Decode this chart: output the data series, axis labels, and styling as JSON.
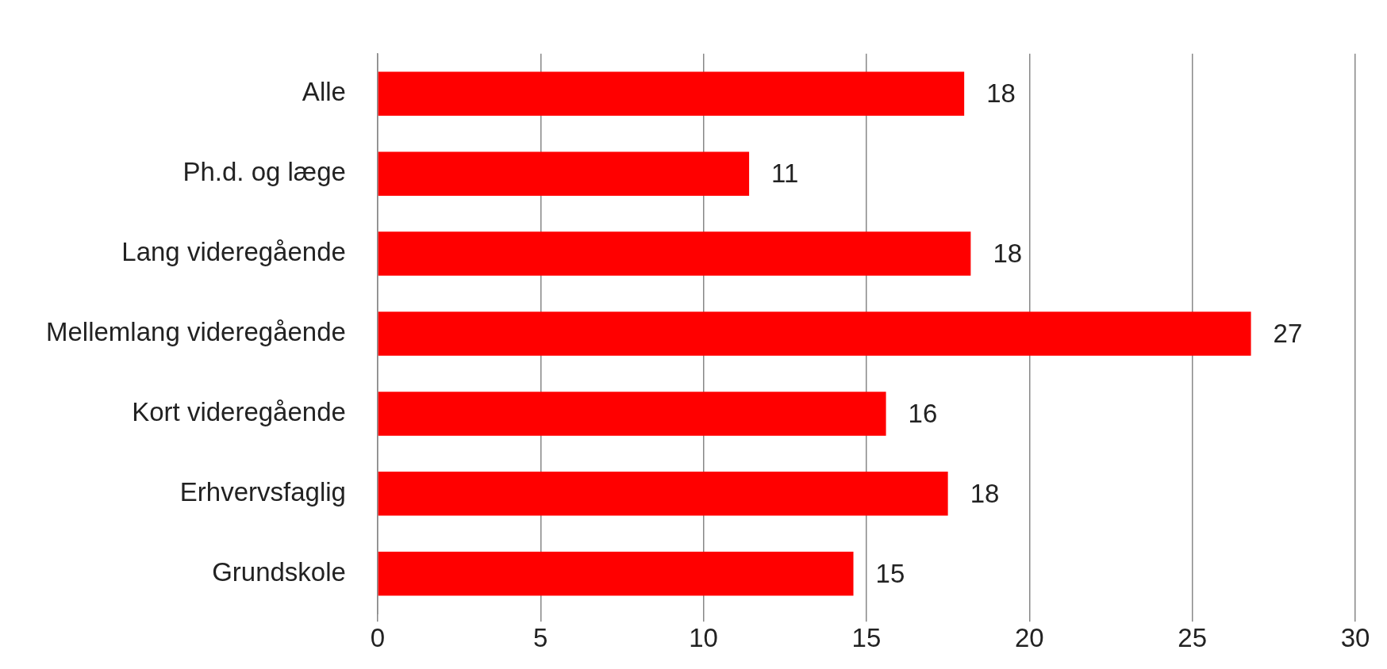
{
  "chart_data": {
    "type": "bar",
    "orientation": "horizontal",
    "categories": [
      "Alle",
      "Ph.d. og læge",
      "Lang videregående",
      "Mellemlang videregående",
      "Kort videregående",
      "Erhvervsfaglig",
      "Grundskole"
    ],
    "values": [
      18.0,
      11.4,
      18.2,
      26.8,
      15.6,
      17.5,
      14.6
    ],
    "value_labels": [
      "18",
      "11",
      "18",
      "27",
      "16",
      "18",
      "15"
    ],
    "color": "#ff0000",
    "xlim": [
      0,
      30
    ],
    "xticks": [
      0,
      5,
      10,
      15,
      20,
      25,
      30
    ],
    "grid": "x"
  }
}
